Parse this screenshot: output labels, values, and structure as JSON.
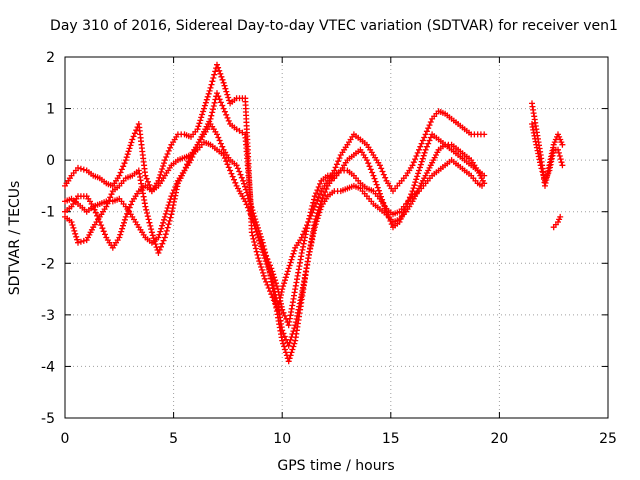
{
  "chart_data": {
    "type": "scatter",
    "title": "Day 310 of 2016, Sidereal Day-to-day VTEC variation (SDTVAR) for receiver ven1",
    "xlabel": "GPS time / hours",
    "ylabel": "SDTVAR / TECUs",
    "xlim": [
      0,
      25
    ],
    "ylim": [
      -5,
      2
    ],
    "xticks": [
      "0",
      "5",
      "10",
      "15",
      "20",
      "25"
    ],
    "yticks": [
      "-5",
      "-4",
      "-3",
      "-2",
      "-1",
      "0",
      "1",
      "2"
    ],
    "grid": true,
    "legend": "none",
    "marker": "plus",
    "color": "#ff0000",
    "series": [
      {
        "x": [
          0.0,
          0.3,
          0.6,
          1.0,
          1.3,
          1.6,
          1.9,
          2.2,
          2.5,
          2.8,
          3.1,
          3.4,
          3.7,
          4.0,
          4.3,
          4.6,
          4.9,
          5.2,
          5.5,
          5.8,
          6.1,
          6.4,
          6.7,
          7.0,
          7.3,
          7.6,
          7.9,
          8.2,
          8.5,
          8.8,
          9.1,
          9.4,
          9.7,
          10.0,
          10.3,
          10.6,
          10.9,
          11.2,
          11.5,
          11.8,
          12.1,
          12.4,
          12.7,
          13.0,
          13.3,
          13.6,
          13.9,
          14.2,
          14.5,
          14.8,
          15.1,
          15.4,
          15.7,
          16.0,
          16.3,
          16.6,
          16.9,
          17.2,
          17.5,
          17.8,
          18.1,
          18.4,
          18.7,
          19.0,
          19.2
        ],
        "y": [
          -0.8,
          -0.75,
          -0.85,
          -1.0,
          -0.9,
          -0.85,
          -0.8,
          -0.8,
          -0.75,
          -0.9,
          -1.1,
          -1.3,
          -1.5,
          -1.6,
          -1.5,
          -1.1,
          -0.7,
          -0.4,
          -0.2,
          0.1,
          0.3,
          0.5,
          0.7,
          0.5,
          0.2,
          0.0,
          -0.1,
          -0.4,
          -0.8,
          -1.2,
          -1.6,
          -2.1,
          -2.8,
          -3.5,
          -3.9,
          -3.5,
          -2.7,
          -1.9,
          -1.2,
          -0.8,
          -0.5,
          -0.3,
          -0.2,
          -0.2,
          -0.3,
          -0.45,
          -0.55,
          -0.6,
          -0.75,
          -0.95,
          -1.05,
          -1.0,
          -0.85,
          -0.7,
          -0.6,
          -0.45,
          -0.3,
          -0.2,
          -0.1,
          0.0,
          -0.1,
          -0.2,
          -0.3,
          -0.45,
          -0.5
        ]
      },
      {
        "x": [
          0.0,
          0.3,
          0.6,
          1.0,
          1.3,
          1.6,
          1.9,
          2.2,
          2.5,
          2.8,
          3.1,
          3.4,
          3.7,
          4.0,
          4.3,
          4.6,
          4.9,
          5.2,
          5.5,
          5.8,
          6.1,
          6.4,
          6.7,
          7.0,
          7.3,
          7.6,
          7.9,
          8.3,
          8.6,
          8.9,
          9.2,
          9.5,
          9.8,
          10.0,
          10.3,
          10.6,
          10.9,
          11.2,
          11.5,
          11.8,
          12.1,
          12.4,
          12.7,
          13.0,
          13.3,
          13.6,
          13.9,
          14.2,
          14.5,
          14.8,
          15.1,
          15.4,
          15.7,
          16.0,
          16.3,
          16.6,
          16.9,
          17.2,
          17.5,
          17.8,
          18.1,
          18.4,
          18.7,
          19.0,
          19.3
        ],
        "y": [
          -1.0,
          -0.9,
          -0.7,
          -0.7,
          -0.9,
          -1.2,
          -1.5,
          -1.7,
          -1.5,
          -1.1,
          -0.8,
          -0.6,
          -0.5,
          -0.6,
          -0.5,
          -0.3,
          -0.1,
          0.0,
          0.05,
          0.1,
          0.2,
          0.35,
          0.3,
          0.2,
          0.1,
          -0.2,
          -0.5,
          -0.8,
          -1.1,
          -1.5,
          -1.9,
          -2.3,
          -2.8,
          -3.3,
          -3.6,
          -3.2,
          -2.6,
          -1.9,
          -1.3,
          -0.9,
          -0.7,
          -0.6,
          -0.6,
          -0.55,
          -0.5,
          -0.55,
          -0.7,
          -0.85,
          -0.95,
          -1.05,
          -1.2,
          -1.15,
          -1.0,
          -0.8,
          -0.55,
          -0.3,
          -0.05,
          0.2,
          0.3,
          0.3,
          0.2,
          0.1,
          0.0,
          -0.2,
          -0.45
        ]
      },
      {
        "x": [
          0.0,
          0.3,
          0.6,
          1.0,
          1.3,
          1.6,
          1.9,
          2.2,
          2.5,
          2.8,
          3.1,
          3.4,
          3.7,
          4.0,
          4.3,
          4.6,
          4.9,
          5.2,
          5.5,
          5.8,
          6.1,
          6.4,
          6.7,
          7.0,
          7.3,
          7.6,
          7.9,
          8.3,
          8.6,
          8.9,
          9.2,
          9.5,
          9.8,
          10.0,
          10.3,
          10.6,
          10.9,
          11.2,
          11.5,
          11.8,
          12.1,
          12.4,
          12.7,
          13.0,
          13.3,
          13.6,
          13.9,
          14.2,
          14.5,
          14.8,
          15.1,
          15.4,
          15.7,
          16.0,
          16.3,
          16.6,
          16.9,
          17.2,
          17.5,
          17.8,
          18.1,
          18.4,
          18.7,
          19.0,
          19.3
        ],
        "y": [
          -0.5,
          -0.3,
          -0.15,
          -0.2,
          -0.3,
          -0.35,
          -0.45,
          -0.5,
          -0.3,
          0.0,
          0.4,
          0.7,
          -0.3,
          -0.6,
          -0.4,
          0.0,
          0.3,
          0.5,
          0.5,
          0.45,
          0.6,
          1.0,
          1.4,
          1.85,
          1.5,
          1.1,
          1.2,
          1.2,
          -1.4,
          -1.9,
          -2.3,
          -2.6,
          -2.9,
          -2.5,
          -2.1,
          -1.7,
          -1.5,
          -1.2,
          -0.9,
          -0.6,
          -0.4,
          -0.2,
          0.1,
          0.3,
          0.5,
          0.4,
          0.3,
          0.1,
          -0.1,
          -0.4,
          -0.6,
          -0.45,
          -0.3,
          -0.1,
          0.2,
          0.5,
          0.8,
          0.95,
          0.9,
          0.8,
          0.7,
          0.6,
          0.5,
          0.5,
          0.5
        ]
      },
      {
        "x": [
          0.0,
          0.3,
          0.6,
          1.0,
          1.3,
          1.6,
          1.9,
          2.2,
          2.5,
          2.8,
          3.1,
          3.4,
          3.7,
          4.0,
          4.3,
          4.6,
          4.9,
          5.2,
          5.5,
          5.8,
          6.1,
          6.4,
          6.7,
          7.0,
          7.3,
          7.6,
          7.9,
          8.3,
          8.6,
          8.9,
          9.2,
          9.5,
          9.8,
          10.0,
          10.3,
          10.6,
          10.9,
          11.2,
          11.5,
          11.8,
          12.1,
          12.4,
          12.7,
          13.0,
          13.3,
          13.6,
          13.9,
          14.2,
          14.5,
          14.8,
          15.1,
          15.4,
          15.7,
          16.0,
          16.3,
          16.6,
          16.9,
          17.2,
          17.5,
          17.8,
          18.1,
          18.4,
          18.7,
          19.0,
          19.3
        ],
        "y": [
          -1.1,
          -1.2,
          -1.6,
          -1.55,
          -1.3,
          -1.1,
          -0.9,
          -0.6,
          -0.5,
          -0.35,
          -0.3,
          -0.2,
          -0.9,
          -1.4,
          -1.8,
          -1.5,
          -1.05,
          -0.45,
          -0.2,
          0.0,
          0.3,
          0.55,
          0.8,
          1.3,
          1.0,
          0.7,
          0.6,
          0.5,
          -1.1,
          -1.5,
          -1.8,
          -2.1,
          -2.5,
          -2.9,
          -3.2,
          -2.5,
          -1.8,
          -1.2,
          -0.7,
          -0.4,
          -0.3,
          -0.35,
          -0.2,
          0.0,
          0.1,
          0.2,
          0.0,
          -0.3,
          -0.65,
          -1.0,
          -1.3,
          -1.2,
          -0.9,
          -0.6,
          -0.2,
          0.2,
          0.5,
          0.4,
          0.3,
          0.2,
          0.1,
          0.0,
          -0.1,
          -0.2,
          -0.3
        ]
      },
      {
        "x": [
          21.5,
          21.7,
          21.9,
          22.1,
          22.3,
          22.5,
          22.7,
          22.9
        ],
        "y": [
          1.1,
          0.6,
          0.1,
          -0.5,
          -0.1,
          0.3,
          0.5,
          0.3
        ]
      },
      {
        "x": [
          21.5,
          21.7,
          21.9,
          22.1,
          22.3,
          22.5,
          22.7,
          22.9
        ],
        "y": [
          0.7,
          0.3,
          -0.1,
          -0.4,
          -0.2,
          0.2,
          0.2,
          -0.1
        ]
      },
      {
        "x": [
          22.5,
          22.6,
          22.7,
          22.8
        ],
        "y": [
          -1.3,
          -1.25,
          -1.2,
          -1.1
        ]
      }
    ]
  }
}
